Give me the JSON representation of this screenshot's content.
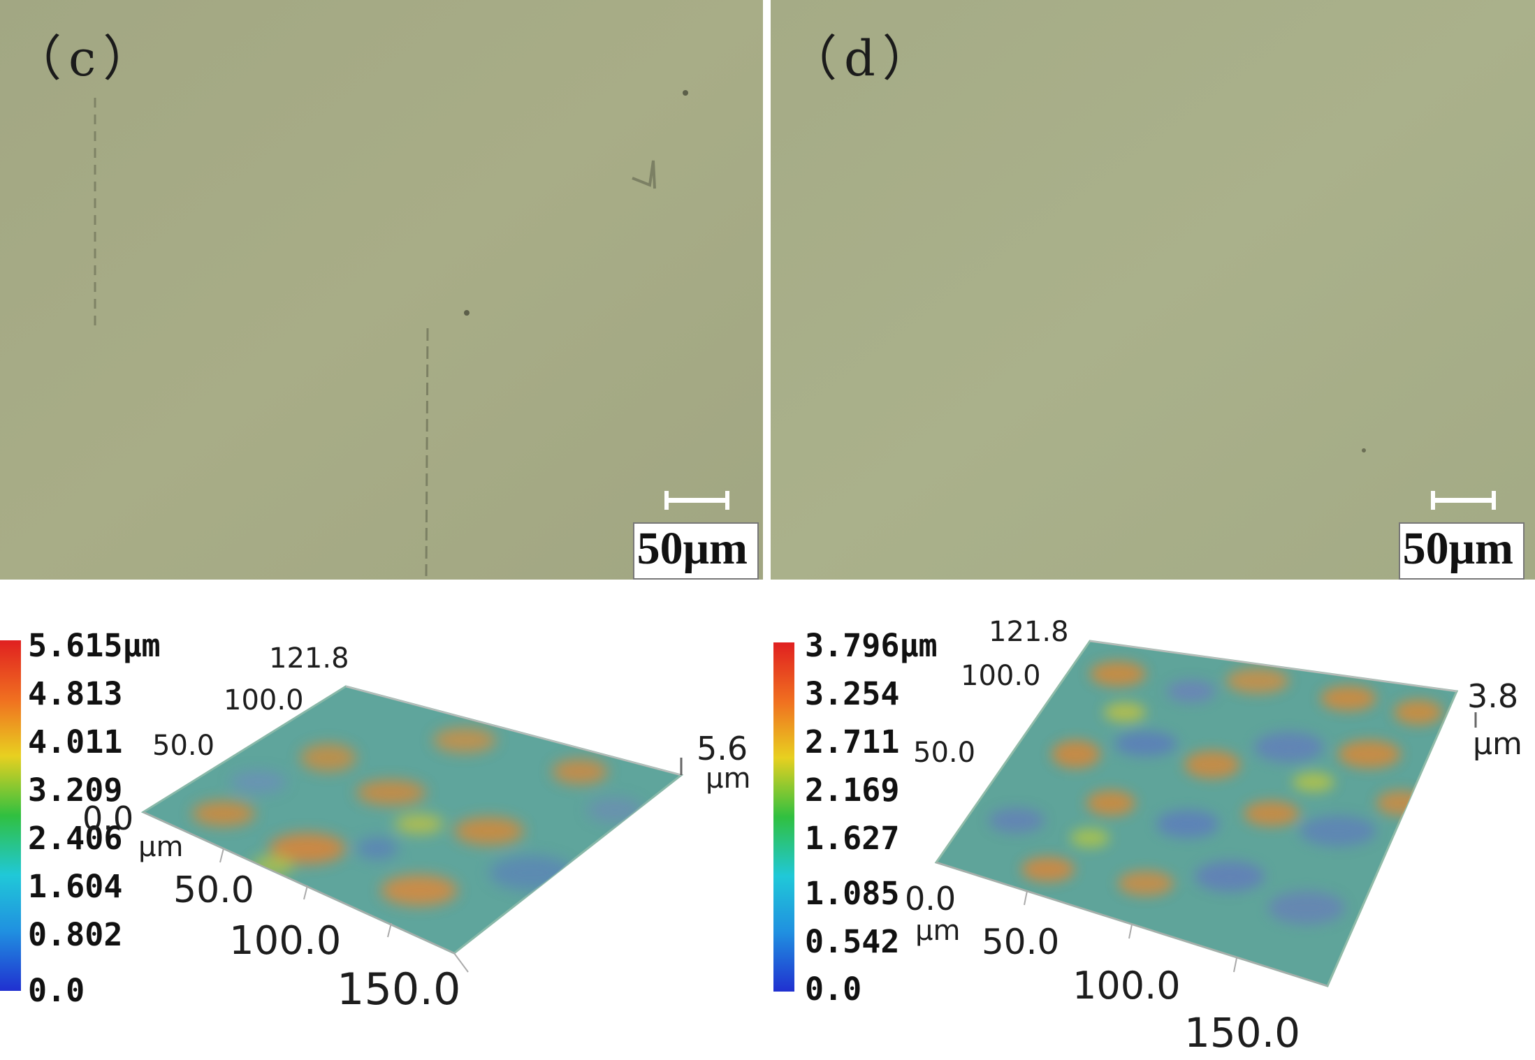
{
  "panels": [
    {
      "label": "（c）",
      "scale_text": "50μm",
      "colorbar": [
        "5.615μm",
        "4.813",
        "4.011",
        "3.209",
        "2.406",
        "1.604",
        "0.802",
        "0.0"
      ],
      "axis_labels": {
        "y_max": "121.8",
        "y_mid1": "100.0",
        "y_mid2": "50.0",
        "origin": "0.0",
        "unit": "μm",
        "x1": "50.0",
        "x2": "100.0",
        "x3": "150.0",
        "z_max": "5.6",
        "z_unit": "μm"
      }
    },
    {
      "label": "（d）",
      "scale_text": "50μm",
      "colorbar": [
        "3.796μm",
        "3.254",
        "2.711",
        "2.169",
        "1.627",
        "1.085",
        "0.542",
        "0.0"
      ],
      "axis_labels": {
        "y_max": "121.8",
        "y_mid1": "100.0",
        "y_mid2": "50.0",
        "origin": "0.0",
        "unit": "μm",
        "x1": "50.0",
        "x2": "100.0",
        "x3": "150.0",
        "z_max": "3.8",
        "z_unit": "μm"
      }
    }
  ],
  "colors": {
    "photo_bg": "#a3a981",
    "surface_base": "#5aa39a",
    "high": "#d08a3c",
    "low": "#5b84b6"
  }
}
